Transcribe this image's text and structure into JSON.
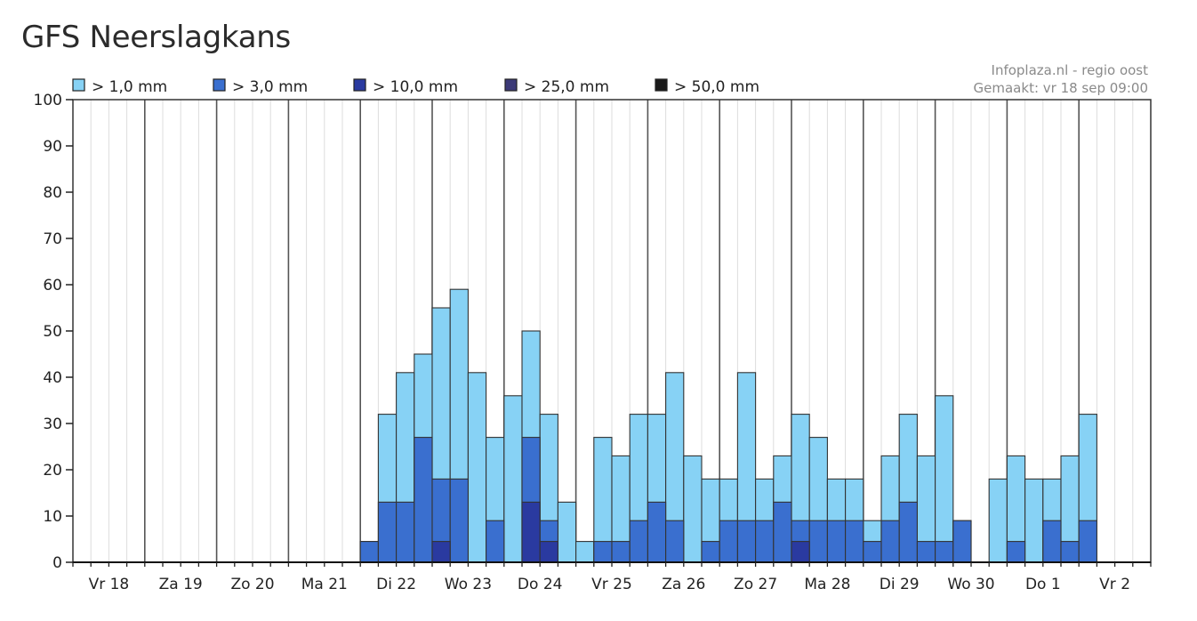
{
  "page": {
    "title": "GFS Neerslagkans"
  },
  "credits": {
    "source": "Infoplaza.nl - regio oost",
    "made": "Gemaakt: vr 18 sep 09:00"
  },
  "colors": {
    "gt1": "#87d2f5",
    "gt3": "#3a6fcf",
    "gt10": "#2a3aa0",
    "gt25": "#3c3a78",
    "gt50": "#1a1a1a",
    "bar_outline": "#333333",
    "grid_day": "#555555",
    "grid_minor": "#dddddd"
  },
  "chart_data": {
    "type": "bar",
    "stacking": "overlay",
    "ylim": [
      0,
      100
    ],
    "yticks": [
      0,
      10,
      20,
      30,
      40,
      50,
      60,
      70,
      80,
      90,
      100
    ],
    "grid": true,
    "legend_position": "top",
    "legend": [
      "> 1,0 mm",
      "> 3,0 mm",
      "> 10,0 mm",
      "> 25,0 mm",
      "> 50,0 mm"
    ],
    "day_labels": [
      "Vr 18",
      "Za 19",
      "Zo 20",
      "Ma 21",
      "Di 22",
      "Wo 23",
      "Do 24",
      "Vr 25",
      "Za 26",
      "Zo 27",
      "Ma 28",
      "Di 29",
      "Wo 30",
      "Do 1",
      "Vr 2"
    ],
    "intervals_per_day": 4,
    "series": [
      {
        "name": "> 1,0 mm",
        "color_key": "gt1",
        "values": [
          0,
          0,
          0,
          0,
          0,
          0,
          0,
          0,
          0,
          0,
          0,
          0,
          0,
          0,
          0,
          0,
          4.5,
          32,
          41,
          45,
          55,
          59,
          41,
          27,
          36,
          50,
          32,
          13,
          4.5,
          27,
          23,
          32,
          32,
          41,
          23,
          18,
          18,
          41,
          18,
          23,
          32,
          27,
          18,
          18,
          9,
          23,
          32,
          23,
          36,
          9,
          0,
          18,
          23,
          18,
          18,
          23,
          32
        ]
      },
      {
        "name": "> 3,0 mm",
        "color_key": "gt3",
        "values": [
          0,
          0,
          0,
          0,
          0,
          0,
          0,
          0,
          0,
          0,
          0,
          0,
          0,
          0,
          0,
          0,
          4.5,
          13,
          13,
          27,
          18,
          18,
          0,
          9,
          0,
          27,
          9,
          0,
          0,
          4.5,
          4.5,
          9,
          13,
          9,
          0,
          4.5,
          9,
          9,
          9,
          13,
          9,
          9,
          9,
          9,
          4.5,
          9,
          13,
          4.5,
          4.5,
          9,
          0,
          0,
          4.5,
          0,
          9,
          4.5,
          9
        ]
      },
      {
        "name": "> 10,0 mm",
        "color_key": "gt10",
        "values": [
          0,
          0,
          0,
          0,
          0,
          0,
          0,
          0,
          0,
          0,
          0,
          0,
          0,
          0,
          0,
          0,
          0,
          0,
          0,
          0,
          4.5,
          0,
          0,
          0,
          0,
          13,
          4.5,
          0,
          0,
          0,
          0,
          0,
          0,
          0,
          0,
          0,
          0,
          0,
          0,
          0,
          4.5,
          0,
          0,
          0,
          0,
          0,
          0,
          0,
          0,
          0,
          0,
          0,
          0,
          0,
          0,
          0,
          0
        ]
      },
      {
        "name": "> 25,0 mm",
        "color_key": "gt25",
        "values": []
      },
      {
        "name": "> 50,0 mm",
        "color_key": "gt50",
        "values": []
      }
    ]
  }
}
